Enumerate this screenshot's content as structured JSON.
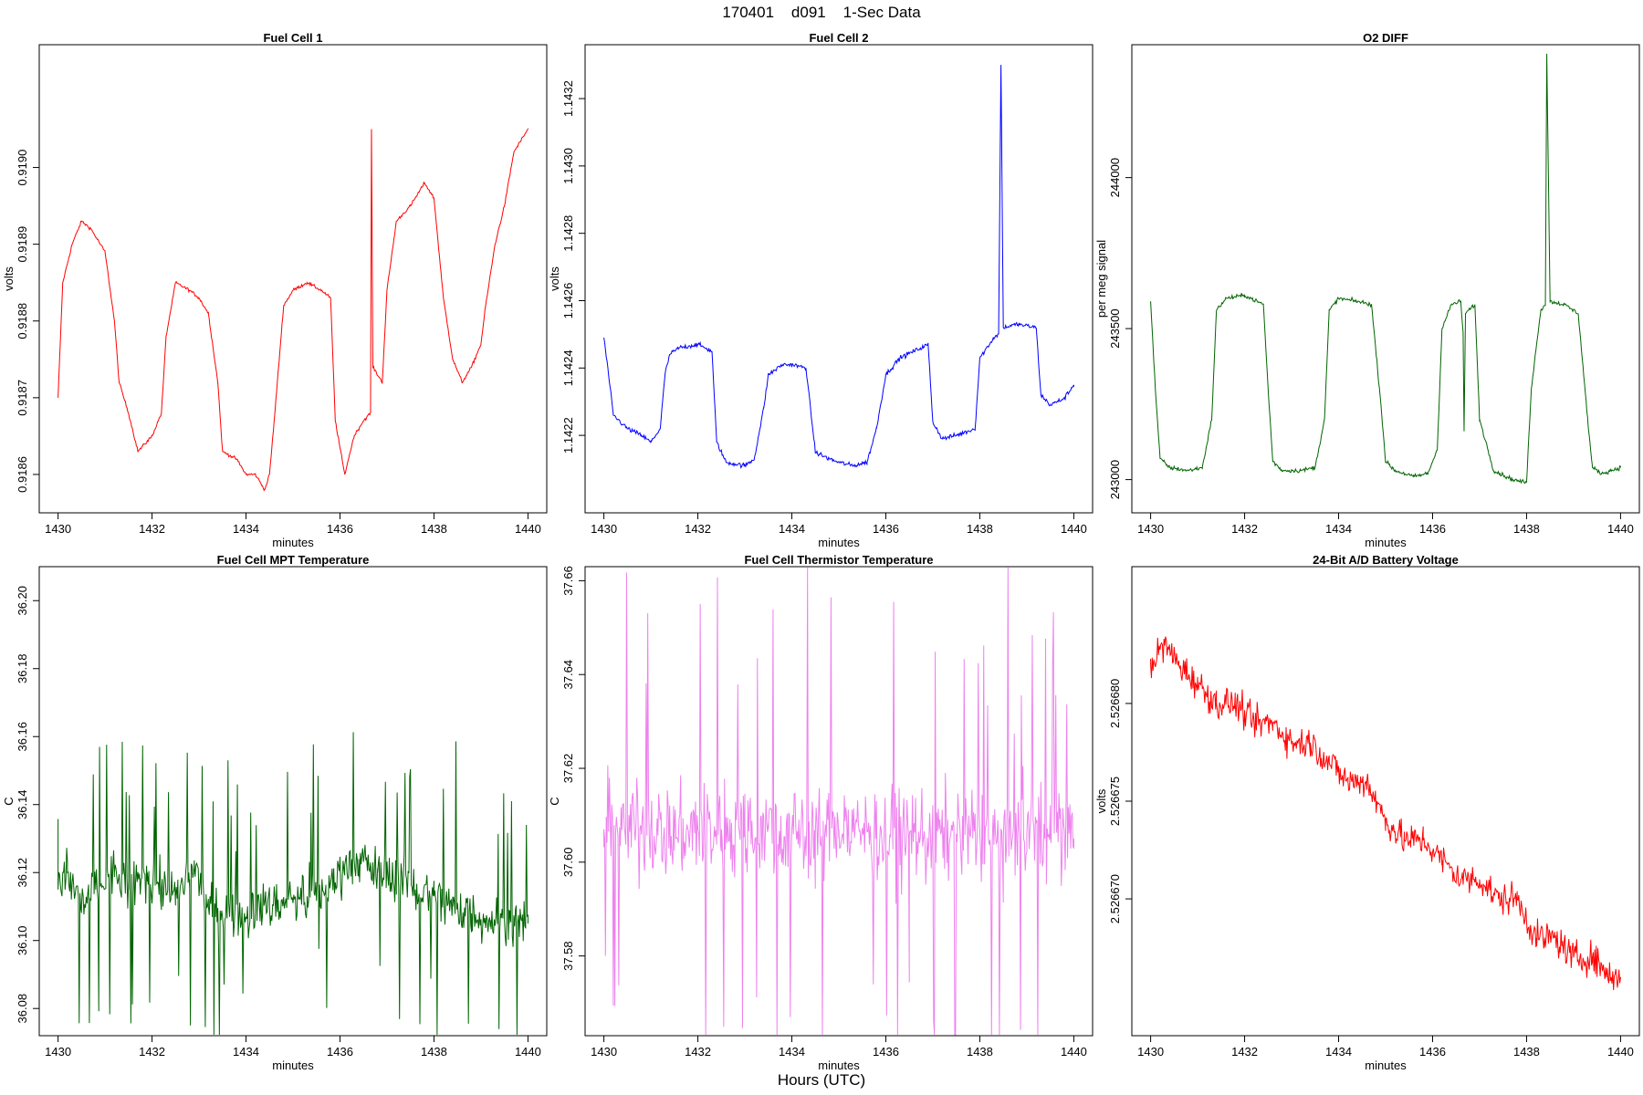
{
  "title": "170401    d091    1-Sec Data",
  "global_xlabel": "Hours (UTC)",
  "chart_data": [
    {
      "type": "line",
      "title": "Fuel Cell 1",
      "xlabel": "minutes",
      "ylabel": "volts",
      "color": "#ff0000",
      "xlim": [
        1429.6,
        1440.4
      ],
      "ylim": [
        0.91855,
        0.91916
      ],
      "xticks": [
        "1430",
        "1432",
        "1434",
        "1436",
        "1438",
        "1440"
      ],
      "xtick_values": [
        1430,
        1432,
        1434,
        1436,
        1438,
        1440
      ],
      "yticks": [
        "0.9186",
        "0.9187",
        "0.9188",
        "0.9189",
        "0.9190"
      ],
      "ytick_values": [
        0.9186,
        0.9187,
        0.9188,
        0.9189,
        0.919
      ],
      "series": [
        {
          "x": [
            1430,
            1430.1,
            1430.3,
            1430.5,
            1430.7,
            1431.0,
            1431.2,
            1431.3,
            1431.5,
            1431.7,
            1432.0,
            1432.2,
            1432.3,
            1432.5,
            1432.8,
            1433.0,
            1433.2,
            1433.4,
            1433.5,
            1433.8,
            1434.0,
            1434.2,
            1434.4,
            1434.5,
            1434.6,
            1434.8,
            1435.0,
            1435.3,
            1435.6,
            1435.8,
            1435.9,
            1436.1,
            1436.3,
            1436.5,
            1436.65,
            1436.67,
            1436.7,
            1436.9,
            1437.0,
            1437.2,
            1437.5,
            1437.8,
            1438.0,
            1438.2,
            1438.4,
            1438.6,
            1438.8,
            1439.0,
            1439.1,
            1439.3,
            1439.5,
            1439.7,
            1440.0
          ],
          "y": [
            0.9187,
            0.91885,
            0.9189,
            0.91893,
            0.91892,
            0.91889,
            0.9188,
            0.91872,
            0.91868,
            0.91863,
            0.91865,
            0.91868,
            0.91878,
            0.91885,
            0.91884,
            0.91883,
            0.91881,
            0.91872,
            0.91863,
            0.91862,
            0.9186,
            0.9186,
            0.91858,
            0.9186,
            0.91867,
            0.91882,
            0.91884,
            0.91885,
            0.91884,
            0.91883,
            0.91867,
            0.9186,
            0.91865,
            0.91867,
            0.91868,
            0.91905,
            0.91874,
            0.91872,
            0.91884,
            0.91893,
            0.91895,
            0.91898,
            0.91896,
            0.91883,
            0.91875,
            0.91872,
            0.91874,
            0.91877,
            0.91882,
            0.9189,
            0.91895,
            0.91902,
            0.91905
          ]
        }
      ]
    },
    {
      "type": "line",
      "title": "Fuel Cell 2",
      "xlabel": "minutes",
      "ylabel": "volts",
      "color": "#0000ff",
      "xlim": [
        1429.6,
        1440.4
      ],
      "ylim": [
        1.14197,
        1.14336
      ],
      "xticks": [
        "1430",
        "1432",
        "1434",
        "1436",
        "1438",
        "1440"
      ],
      "xtick_values": [
        1430,
        1432,
        1434,
        1436,
        1438,
        1440
      ],
      "yticks": [
        "1.1422",
        "1.1424",
        "1.1426",
        "1.1428",
        "1.1430",
        "1.1432"
      ],
      "ytick_values": [
        1.1422,
        1.1424,
        1.1426,
        1.1428,
        1.143,
        1.1432
      ],
      "series": [
        {
          "x": [
            1430,
            1430.1,
            1430.2,
            1430.5,
            1430.8,
            1431.0,
            1431.2,
            1431.3,
            1431.4,
            1431.6,
            1432.0,
            1432.3,
            1432.4,
            1432.6,
            1433.0,
            1433.2,
            1433.4,
            1433.5,
            1433.8,
            1434.0,
            1434.3,
            1434.5,
            1434.8,
            1435.0,
            1435.3,
            1435.6,
            1435.8,
            1436.0,
            1436.3,
            1436.6,
            1436.9,
            1437.0,
            1437.2,
            1437.5,
            1437.9,
            1438.0,
            1438.3,
            1438.4,
            1438.45,
            1438.5,
            1438.8,
            1439.2,
            1439.3,
            1439.5,
            1439.8,
            1440.0
          ],
          "y": [
            1.14249,
            1.14238,
            1.14226,
            1.14222,
            1.1422,
            1.14218,
            1.14222,
            1.14238,
            1.14244,
            1.14246,
            1.14247,
            1.14245,
            1.14218,
            1.14212,
            1.14211,
            1.14213,
            1.14228,
            1.14238,
            1.14241,
            1.14241,
            1.1424,
            1.14215,
            1.14213,
            1.14212,
            1.14211,
            1.14212,
            1.14222,
            1.14238,
            1.14243,
            1.14245,
            1.14247,
            1.14224,
            1.14219,
            1.1422,
            1.14222,
            1.14243,
            1.14249,
            1.1425,
            1.1433,
            1.14252,
            1.14253,
            1.14252,
            1.14232,
            1.14229,
            1.14231,
            1.14235
          ]
        }
      ]
    },
    {
      "type": "line",
      "title": "O2 DIFF",
      "xlabel": "minutes",
      "ylabel": "per meg signal",
      "color": "#006400",
      "xlim": [
        1429.6,
        1440.4
      ],
      "ylim": [
        242890,
        244440
      ],
      "xticks": [
        "1430",
        "1432",
        "1434",
        "1436",
        "1438",
        "1440"
      ],
      "xtick_values": [
        1430,
        1432,
        1434,
        1436,
        1438,
        1440
      ],
      "yticks": [
        "243000",
        "243500",
        "244000"
      ],
      "ytick_values": [
        243000,
        243500,
        244000
      ],
      "series": [
        {
          "x": [
            1430,
            1430.1,
            1430.2,
            1430.4,
            1430.8,
            1431.1,
            1431.3,
            1431.4,
            1431.6,
            1432.0,
            1432.4,
            1432.5,
            1432.6,
            1432.8,
            1433.2,
            1433.5,
            1433.7,
            1433.8,
            1434.0,
            1434.4,
            1434.7,
            1434.9,
            1435.0,
            1435.2,
            1435.6,
            1435.9,
            1436.1,
            1436.2,
            1436.4,
            1436.6,
            1436.65,
            1436.67,
            1436.7,
            1436.9,
            1437.0,
            1437.3,
            1437.7,
            1438.0,
            1438.1,
            1438.3,
            1438.4,
            1438.43,
            1438.5,
            1438.8,
            1439.1,
            1439.3,
            1439.4,
            1439.6,
            1440.0
          ],
          "y": [
            243590,
            243300,
            243070,
            243040,
            243030,
            243040,
            243200,
            243560,
            243600,
            243610,
            243580,
            243300,
            243060,
            243030,
            243030,
            243040,
            243200,
            243560,
            243600,
            243590,
            243580,
            243250,
            243060,
            243030,
            243010,
            243020,
            243100,
            243500,
            243580,
            243590,
            243480,
            243160,
            243550,
            243580,
            243200,
            243030,
            243000,
            242990,
            243300,
            243560,
            243580,
            244410,
            243590,
            243580,
            243550,
            243200,
            243040,
            243020,
            243040
          ]
        }
      ]
    },
    {
      "type": "line",
      "title": "Fuel Cell MPT Temperature",
      "xlabel": "minutes",
      "ylabel": "C",
      "color": "#006400",
      "xlim": [
        1429.6,
        1440.4
      ],
      "ylim": [
        36.072,
        36.21
      ],
      "xticks": [
        "1430",
        "1432",
        "1434",
        "1436",
        "1438",
        "1440"
      ],
      "xtick_values": [
        1430,
        1432,
        1434,
        1436,
        1438,
        1440
      ],
      "yticks": [
        "36.08",
        "36.10",
        "36.12",
        "36.14",
        "36.16",
        "36.18",
        "36.20"
      ],
      "ytick_values": [
        36.08,
        36.1,
        36.12,
        36.14,
        36.16,
        36.18,
        36.2
      ],
      "series": [
        {
          "x": [
            1430,
            1430.2,
            1430.5,
            1430.8,
            1431.2,
            1431.5,
            1431.9,
            1432.2,
            1432.5,
            1432.8,
            1432.9,
            1433.2,
            1433.6,
            1434.0,
            1434.2,
            1434.5,
            1434.9,
            1435.3,
            1435.7,
            1436.1,
            1436.4,
            1436.8,
            1437.2,
            1437.6,
            1438.0,
            1438.4,
            1438.8,
            1439.2,
            1439.6,
            1440.0
          ],
          "y": [
            36.115,
            36.12,
            36.11,
            36.115,
            36.12,
            36.115,
            36.12,
            36.115,
            36.113,
            36.118,
            36.122,
            36.11,
            36.108,
            36.107,
            36.11,
            36.11,
            36.112,
            36.113,
            36.115,
            36.122,
            36.124,
            36.12,
            36.118,
            36.115,
            36.113,
            36.11,
            36.108,
            36.106,
            36.105,
            36.105
          ]
        }
      ]
    },
    {
      "type": "line",
      "title": "Fuel Cell Thermistor Temperature",
      "xlabel": "minutes",
      "ylabel": "C",
      "color": "#ee82ee",
      "xlim": [
        1429.6,
        1440.4
      ],
      "ylim": [
        37.563,
        37.663
      ],
      "xticks": [
        "1430",
        "1432",
        "1434",
        "1436",
        "1438",
        "1440"
      ],
      "xtick_values": [
        1430,
        1432,
        1434,
        1436,
        1438,
        1440
      ],
      "yticks": [
        "37.58",
        "37.60",
        "37.62",
        "37.64",
        "37.66"
      ],
      "ytick_values": [
        37.58,
        37.6,
        37.62,
        37.64,
        37.66
      ],
      "series": [
        {
          "x": [
            1430,
            1430.5,
            1431.0,
            1431.5,
            1432.0,
            1432.5,
            1433.0,
            1433.5,
            1434.0,
            1434.5,
            1435.0,
            1435.5,
            1436.0,
            1436.5,
            1437.0,
            1437.5,
            1438.0,
            1438.5,
            1439.0,
            1439.5,
            1440.0
          ],
          "y": [
            37.607,
            37.608,
            37.607,
            37.606,
            37.607,
            37.607,
            37.608,
            37.607,
            37.607,
            37.606,
            37.607,
            37.607,
            37.606,
            37.606,
            37.606,
            37.606,
            37.606,
            37.605,
            37.606,
            37.606,
            37.605
          ]
        }
      ]
    },
    {
      "type": "line",
      "title": "24-Bit A/D Battery Voltage",
      "xlabel": "minutes",
      "ylabel": "volts",
      "color": "#ff0000",
      "xlim": [
        1429.6,
        1440.4
      ],
      "ylim": [
        2.526663,
        2.526687
      ],
      "xticks": [
        "1430",
        "1432",
        "1434",
        "1436",
        "1438",
        "1440"
      ],
      "xtick_values": [
        1430,
        1432,
        1434,
        1436,
        1438,
        1440
      ],
      "yticks": [
        "2.526670",
        "2.526675",
        "2.526680"
      ],
      "ytick_values": [
        2.52667,
        2.526675,
        2.52668
      ],
      "series": [
        {
          "x": [
            1430,
            1430.3,
            1430.6,
            1431.0,
            1431.4,
            1431.8,
            1432.2,
            1432.6,
            1433.0,
            1433.4,
            1433.8,
            1434.2,
            1434.6,
            1435.0,
            1435.4,
            1435.8,
            1436.2,
            1436.6,
            1437.0,
            1437.4,
            1437.8,
            1438.2,
            1438.6,
            1439.0,
            1439.4,
            1439.8,
            1440.0
          ],
          "y": [
            2.526682,
            2.526683,
            2.526682,
            2.526681,
            2.52668,
            2.52668,
            2.526679,
            2.526679,
            2.526678,
            2.526678,
            2.526677,
            2.526676,
            2.526676,
            2.526674,
            2.526673,
            2.526673,
            2.526672,
            2.526671,
            2.526671,
            2.52667,
            2.52667,
            2.526668,
            2.526668,
            2.526667,
            2.526667,
            2.526666,
            2.526666
          ]
        }
      ]
    }
  ]
}
